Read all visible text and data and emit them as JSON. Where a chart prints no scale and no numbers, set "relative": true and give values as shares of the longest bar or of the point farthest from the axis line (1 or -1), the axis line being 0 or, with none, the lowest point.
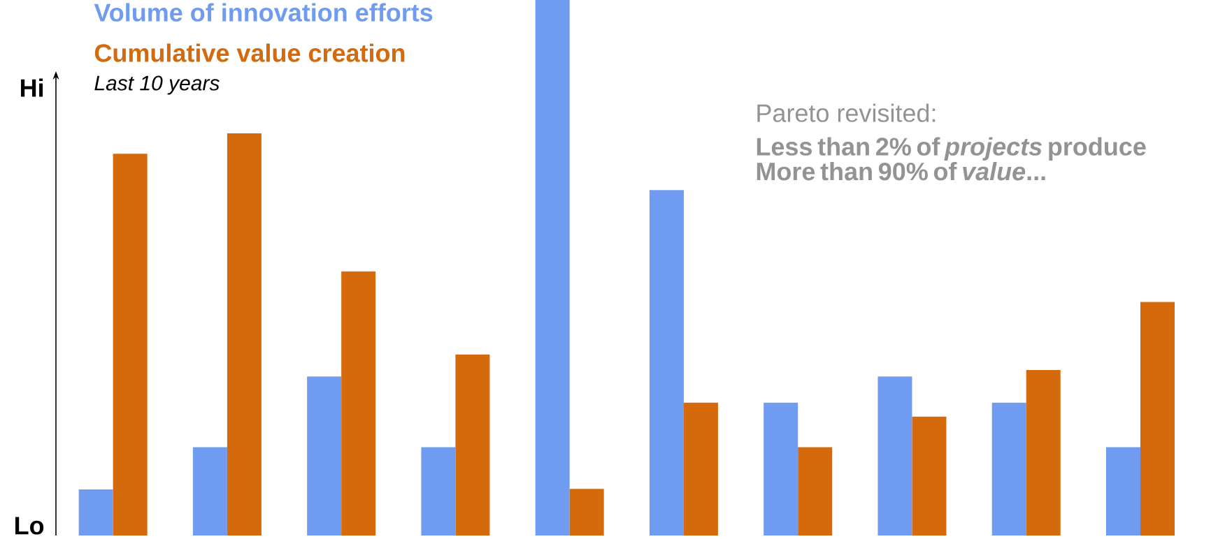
{
  "chart_data": {
    "type": "bar",
    "relative": true,
    "subtitle": "Last 10 years",
    "legend": "top left",
    "categories": [
      null,
      null,
      null,
      null,
      null,
      null,
      null,
      null,
      null,
      null
    ],
    "series": [
      {
        "name": "Volume of innovation efforts",
        "color": "#6f9cf0",
        "values": [
          0.086,
          0.165,
          0.297,
          0.165,
          1,
          0.645,
          0.248,
          0.297,
          0.248,
          0.165
        ]
      },
      {
        "name": "Cumulative value creation",
        "color": "#d46a0c",
        "values": [
          0.713,
          0.751,
          0.493,
          0.338,
          0.087,
          0.248,
          0.165,
          0.222,
          0.309,
          0.436
        ]
      }
    ],
    "annotations": [
      "Hi",
      "Lo",
      "Pareto revisited:",
      "Less than 2% of *projects* produce More than 90% of *value*..."
    ]
  }
}
